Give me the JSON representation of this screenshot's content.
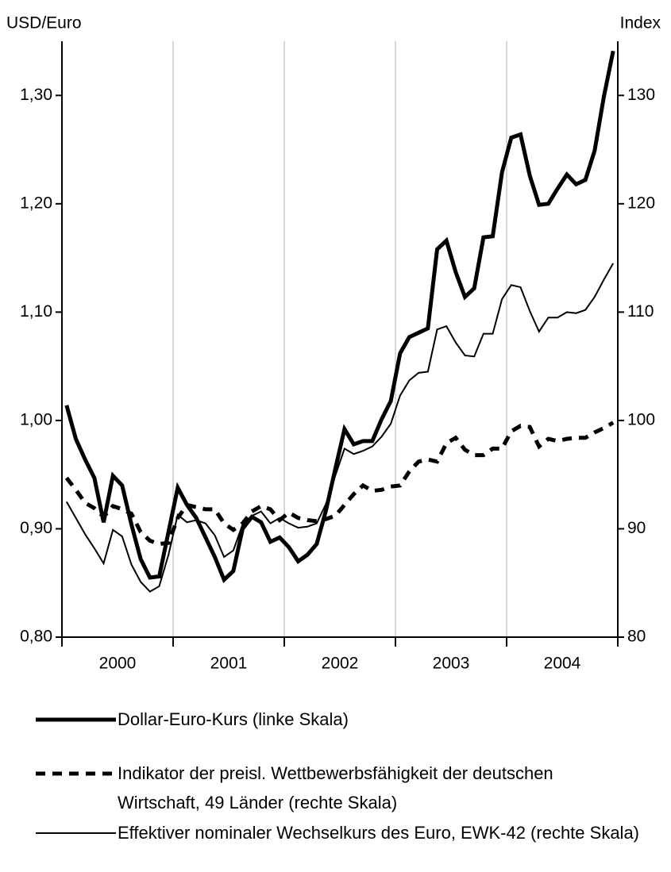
{
  "chart_data": {
    "type": "line",
    "ylabel": "USD/Euro",
    "y2label": "Index",
    "categories": [
      null,
      null,
      null,
      null,
      null,
      null,
      "2000",
      null,
      null,
      null,
      null,
      null,
      null,
      null,
      null,
      null,
      null,
      null,
      "2001",
      null,
      null,
      null,
      null,
      null,
      null,
      null,
      null,
      null,
      null,
      null,
      "2002",
      null,
      null,
      null,
      null,
      null,
      null,
      null,
      null,
      null,
      null,
      null,
      "2003",
      null,
      null,
      null,
      null,
      null,
      null,
      null,
      null,
      null,
      null,
      null,
      "2004",
      null,
      null,
      null,
      null,
      null
    ],
    "ylim": [
      0.8,
      1.35
    ],
    "yticks": [
      {
        "value": 0.8,
        "label": "0,80"
      },
      {
        "value": 0.9,
        "label": "0,90"
      },
      {
        "value": 1.0,
        "label": "1,00"
      },
      {
        "value": 1.1,
        "label": "1,10"
      },
      {
        "value": 1.2,
        "label": "1,20"
      },
      {
        "value": 1.3,
        "label": "1,30"
      }
    ],
    "y2lim": [
      80,
      135
    ],
    "y2ticks": [
      80,
      90,
      100,
      110,
      120,
      130
    ],
    "grid": true,
    "legend": "bottom",
    "series": [
      {
        "name": "Dollar-Euro-Kurs (linke Skala)",
        "color": "#000000",
        "style": "thick",
        "values": [
          1.014,
          0.983,
          0.964,
          0.947,
          0.906,
          0.949,
          0.94,
          0.904,
          0.872,
          0.855,
          0.856,
          0.897,
          0.938,
          0.922,
          0.91,
          0.892,
          0.874,
          0.853,
          0.861,
          0.9,
          0.911,
          0.906,
          0.888,
          0.892,
          0.883,
          0.87,
          0.876,
          0.886,
          0.917,
          0.955,
          0.992,
          0.978,
          0.981,
          0.981,
          1.001,
          1.018,
          1.062,
          1.077,
          1.081,
          1.085,
          1.158,
          1.166,
          1.137,
          1.114,
          1.122,
          1.169,
          1.17,
          1.229,
          1.261,
          1.264,
          1.226,
          1.199,
          1.2,
          1.214,
          1.227,
          1.218,
          1.222,
          1.249,
          1.299,
          1.341
        ]
      },
      {
        "name": "Indikator der preisl. Wettbewerbsfähigkeit der deutschen Wirtschaft, 49 Länder (rechte Skala)",
        "color": "#000000",
        "style": "dashed",
        "axis": "y2",
        "values": [
          94.7,
          93.6,
          92.4,
          91.9,
          91.1,
          92.1,
          91.8,
          91.4,
          89.7,
          88.9,
          88.6,
          88.7,
          91.0,
          92.2,
          92.0,
          91.8,
          91.8,
          90.5,
          89.9,
          90.5,
          91.6,
          92.1,
          91.8,
          90.8,
          91.5,
          91.0,
          90.8,
          90.7,
          90.9,
          91.2,
          92.2,
          93.2,
          94.0,
          93.5,
          93.6,
          93.9,
          94.0,
          95.3,
          96.2,
          96.4,
          96.2,
          97.9,
          98.4,
          97.3,
          96.8,
          96.8,
          97.4,
          97.4,
          99.0,
          99.5,
          99.4,
          97.6,
          98.3,
          98.1,
          98.3,
          98.4,
          98.4,
          98.9,
          99.3,
          99.8
        ]
      },
      {
        "name": "Effektiver nominaler Wechselkurs des Euro, EWK-42 (rechte Skala)",
        "color": "#000000",
        "style": "thin",
        "axis": "y2",
        "values": [
          92.5,
          91.0,
          89.5,
          88.2,
          86.8,
          89.9,
          89.3,
          86.7,
          85.1,
          84.2,
          84.7,
          87.6,
          91.3,
          90.6,
          90.8,
          90.5,
          89.4,
          87.4,
          88.0,
          90.4,
          91.2,
          91.6,
          90.5,
          91.0,
          90.5,
          90.1,
          90.2,
          90.5,
          92.3,
          94.9,
          97.4,
          96.9,
          97.2,
          97.6,
          98.5,
          99.7,
          102.3,
          103.7,
          104.4,
          104.5,
          108.4,
          108.7,
          107.2,
          106.0,
          105.9,
          108.0,
          108.0,
          111.2,
          112.5,
          112.3,
          110.1,
          108.2,
          109.5,
          109.5,
          110.0,
          109.9,
          110.2,
          111.4,
          113.0,
          114.5
        ]
      }
    ]
  }
}
